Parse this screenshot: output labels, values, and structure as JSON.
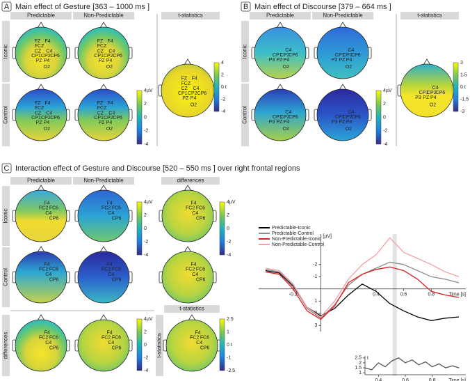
{
  "panels": [
    {
      "label": "A",
      "title": "Main effect of Gesture [363 – 1000 ms ]",
      "columns": [
        "Predictable",
        "Non-Predictable"
      ],
      "stat_header": "t-statistics",
      "rows": [
        "Iconic",
        "Control"
      ],
      "electrodes": [
        "FZ",
        "F4",
        "FCZ",
        "CZ",
        "C4",
        "CP1",
        "CP2",
        "CP6",
        "PZ",
        "P4",
        "O2"
      ],
      "colorbar": [
        "4µV",
        "2",
        "0",
        "-2",
        "-4"
      ],
      "t_colorbar": [
        "4",
        "2",
        "0 t",
        "-2",
        "-4"
      ]
    },
    {
      "label": "B",
      "title": "Main effect of Discourse [379 – 664 ms ]",
      "columns": [
        "Predictable",
        "Non-Predictable"
      ],
      "stat_header": "t-statistics",
      "rows": [
        "Iconic",
        "Control"
      ],
      "electrodes": [
        "C4",
        "CP1",
        "CP2",
        "CP6",
        "P3",
        "PZ",
        "P4",
        "O2"
      ],
      "colorbar": [
        "4µV",
        "2",
        "0",
        "-2",
        "-4"
      ],
      "t_colorbar": [
        "3",
        "1.5",
        "0 t",
        "-1.5",
        "-3"
      ]
    },
    {
      "label": "C",
      "title": "Interaction effect of Gesture and Discourse [520 – 550 ms ] over right frontal regions",
      "columns": [
        "Predictable",
        "Non-Predictable"
      ],
      "diff_header": "differences",
      "stat_header": "t-statistics",
      "rows": [
        "Iconic",
        "Control",
        "differences"
      ],
      "electrodes": [
        "F4",
        "FC2",
        "FC6",
        "C4",
        "CP6"
      ],
      "colorbar": [
        "4µV",
        "2",
        "0",
        "-2",
        "-4"
      ],
      "t_colorbar": [
        "2.5",
        "1",
        "0 t",
        "-1",
        "-2.5"
      ]
    }
  ],
  "chart_data": [
    {
      "type": "line",
      "ylabel": "[µV]",
      "xlabel": "Time [s]",
      "x": [
        -0.4,
        -0.3,
        -0.2,
        -0.1,
        0,
        0.1,
        0.2,
        0.3,
        0.4,
        0.5,
        0.6,
        0.7,
        0.8,
        0.9,
        1.0
      ],
      "series": [
        {
          "name": "Predictable-Iconic",
          "color": "#000000",
          "values": [
            -1.5,
            -1.3,
            -0.2,
            1.5,
            2.2,
            1.6,
            0.5,
            -0.4,
            0.2,
            1.2,
            1.8,
            2.3,
            2.6,
            2.4,
            2.3
          ]
        },
        {
          "name": "Predictable-Control",
          "color": "#8c8c8c",
          "values": [
            -1.6,
            -1.4,
            -0.3,
            1.6,
            2.4,
            1.3,
            -0.3,
            -1.2,
            -1.7,
            -2.2,
            -2.0,
            -1.5,
            -1.0,
            -0.8,
            -0.5
          ]
        },
        {
          "name": "Non-Predictable-Iconic",
          "color": "#e01b1b",
          "values": [
            -1.4,
            -1.2,
            0,
            1.8,
            2.5,
            1.4,
            -0.5,
            -1.2,
            -1.6,
            -1.8,
            -1.5,
            -0.8,
            0.2,
            0.5,
            0.7
          ]
        },
        {
          "name": "Non-Predictable-Control",
          "color": "#f4a0a8",
          "values": [
            -1.7,
            -1.5,
            -0.4,
            1.5,
            2.3,
            1.0,
            -0.8,
            -2.0,
            -2.8,
            -4.2,
            -3.0,
            -2.5,
            -2.0,
            -1.4,
            -1.0
          ]
        }
      ],
      "xlim": [
        -0.45,
        1.05
      ],
      "ylim": [
        -4.5,
        3.5
      ],
      "y_inverted": true,
      "xticks": [
        -0.2,
        0.4,
        0.6,
        0.8
      ],
      "yticks": [
        -2,
        -1,
        1,
        2,
        3
      ],
      "highlight": [
        0.52,
        0.55
      ]
    },
    {
      "type": "line",
      "ylabel": "t",
      "xlabel": "Time [s]",
      "x": [
        0.3,
        0.35,
        0.4,
        0.45,
        0.5,
        0.55,
        0.6,
        0.65,
        0.7,
        0.75,
        0.8,
        0.85,
        0.9,
        0.95,
        1.0
      ],
      "values": [
        1.5,
        1.3,
        2.0,
        1.6,
        2.2,
        2.5,
        2.0,
        2.3,
        1.8,
        2.1,
        1.6,
        1.9,
        1.5,
        1.7,
        1.5
      ],
      "color": "#555555",
      "xlim": [
        0.3,
        1.05
      ],
      "ylim": [
        0.8,
        2.7
      ],
      "xticks": [
        0.4,
        0.6,
        0.8
      ],
      "yticks": [
        2.5,
        2,
        1.5,
        1
      ]
    }
  ]
}
